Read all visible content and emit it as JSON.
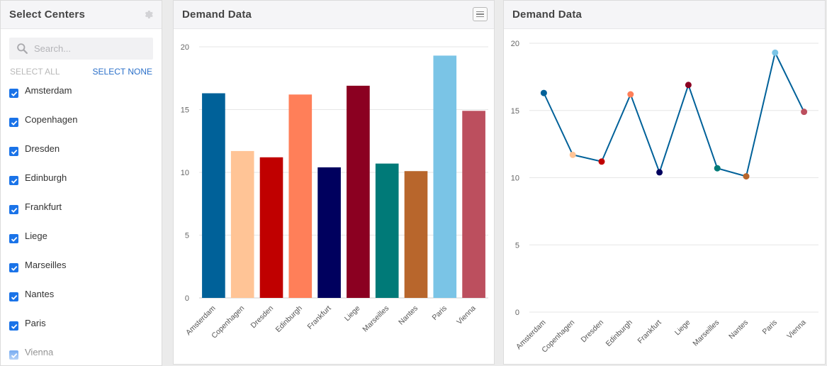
{
  "sidebar": {
    "title": "Select Centers",
    "gear_icon": "gear-icon",
    "search_placeholder": "Search...",
    "select_all": "SELECT ALL",
    "select_none": "SELECT NONE",
    "items": [
      {
        "label": "Amsterdam",
        "checked": true
      },
      {
        "label": "Copenhagen",
        "checked": true
      },
      {
        "label": "Dresden",
        "checked": true
      },
      {
        "label": "Edinburgh",
        "checked": true
      },
      {
        "label": "Frankfurt",
        "checked": true
      },
      {
        "label": "Liege",
        "checked": true
      },
      {
        "label": "Marseilles",
        "checked": true
      },
      {
        "label": "Nantes",
        "checked": true
      },
      {
        "label": "Paris",
        "checked": true
      },
      {
        "label": "Vienna",
        "checked": true
      }
    ]
  },
  "bar_panel": {
    "title": "Demand Data",
    "menu_icon": "hamburger-menu-icon"
  },
  "line_panel": {
    "title": "Demand Data"
  },
  "chart_data": [
    {
      "type": "bar",
      "categories": [
        "Amsterdam",
        "Copenhagen",
        "Dresden",
        "Edinburgh",
        "Frankfurt",
        "Liege",
        "Marseilles",
        "Nantes",
        "Paris",
        "Vienna"
      ],
      "values": [
        16.3,
        11.7,
        11.2,
        16.2,
        10.4,
        16.9,
        10.7,
        10.1,
        19.3,
        14.9
      ],
      "colors": [
        "#006199",
        "#ffc496",
        "#c00000",
        "#ff7f59",
        "#00005e",
        "#8b0021",
        "#007a78",
        "#b8662c",
        "#7ac4e6",
        "#bc4f5e"
      ],
      "ylim": [
        0,
        20
      ],
      "yticks": [
        "0",
        "5",
        "10",
        "15",
        "20"
      ],
      "grid": true
    },
    {
      "type": "line",
      "categories": [
        "Amsterdam",
        "Copenhagen",
        "Dresden",
        "Edinburgh",
        "Frankfurt",
        "Liege",
        "Marseilles",
        "Nantes",
        "Paris",
        "Vienna"
      ],
      "values": [
        16.3,
        11.7,
        11.2,
        16.2,
        10.4,
        16.9,
        10.7,
        10.1,
        19.3,
        14.9
      ],
      "line_color": "#006199",
      "marker_colors": [
        "#006199",
        "#ffc496",
        "#c00000",
        "#ff7f59",
        "#00005e",
        "#8b0021",
        "#007a78",
        "#b8662c",
        "#7ac4e6",
        "#bc4f5e"
      ],
      "ylim": [
        0,
        20
      ],
      "yticks": [
        "0",
        "5",
        "10",
        "15",
        "20"
      ],
      "grid": true
    }
  ]
}
